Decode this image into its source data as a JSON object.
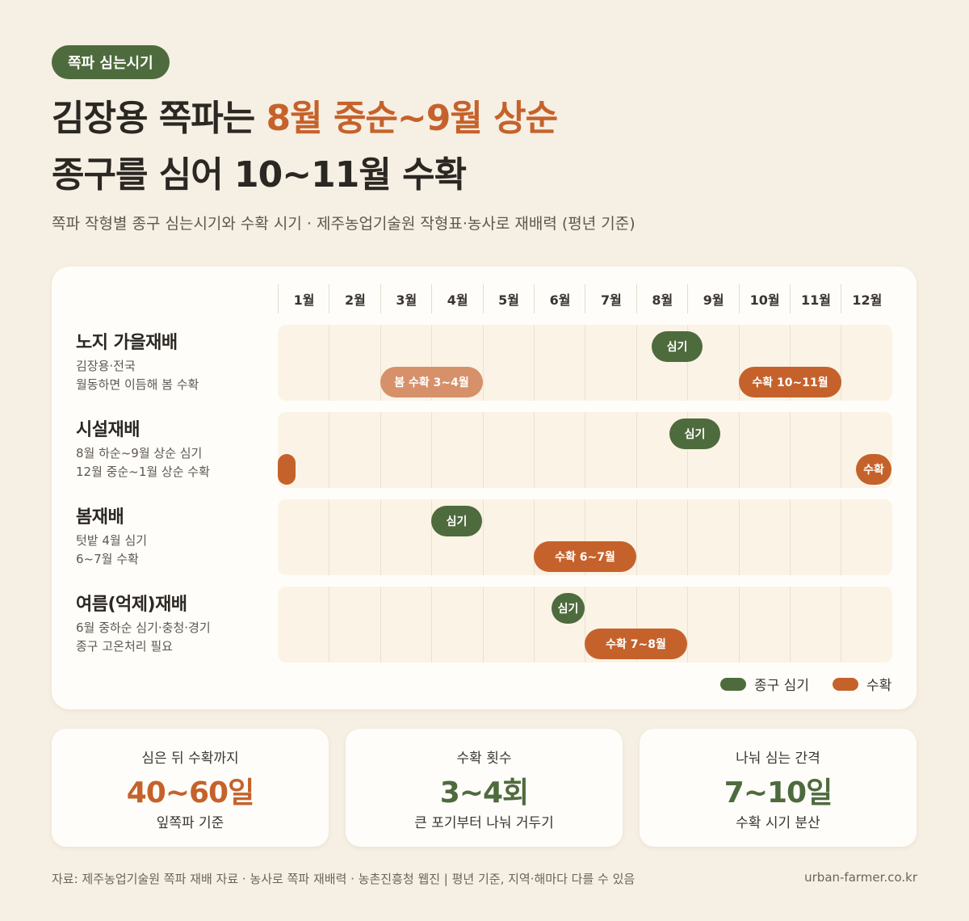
{
  "tag": "쪽파 심는시기",
  "title": {
    "line1_prefix": "김장용 쪽파는 ",
    "line1_highlight": "8월 중순~9월 상순",
    "line2": "종구를 심어 10~11월 수확"
  },
  "subtitle": "쪽파 작형별 종구 심는시기와 수확 시기 · 제주농업기술원 작형표·농사로 재배력 (평년 기준)",
  "colors": {
    "plant": "#4e6b3d",
    "harvest": "#c5622b",
    "harvest_light": "#d6916a",
    "background": "#f6efe3"
  },
  "chart_data": {
    "type": "gantt",
    "x_axis": {
      "unit": "month",
      "range": [
        1,
        13
      ],
      "tick_labels": [
        "1월",
        "2월",
        "3월",
        "4월",
        "5월",
        "6월",
        "7월",
        "8월",
        "9월",
        "10월",
        "11월",
        "12월"
      ]
    },
    "rows": [
      {
        "name": "노지 가을재배",
        "desc": "김장용·전국\n월동하면 이듬해 봄 수확",
        "bars": [
          {
            "kind": "plant",
            "label": "심기",
            "start": 8.3,
            "end": 9.3
          },
          {
            "kind": "harvest-light",
            "label": "봄 수확 3~4월",
            "start": 3.0,
            "end": 5.0
          },
          {
            "kind": "harvest",
            "label": "수확 10~11월",
            "start": 10.0,
            "end": 12.0
          }
        ]
      },
      {
        "name": "시설재배",
        "desc": "8월 하순~9월 상순 심기\n12월 중순~1월 상순 수확",
        "bars": [
          {
            "kind": "plant",
            "label": "심기",
            "start": 8.65,
            "end": 9.65
          },
          {
            "kind": "harvest",
            "label": "",
            "start": 1.0,
            "end": 1.35
          },
          {
            "kind": "harvest",
            "label": "수확",
            "start": 12.3,
            "end": 13.0
          }
        ]
      },
      {
        "name": "봄재배",
        "desc": "텃밭 4월 심기\n6~7월 수확",
        "bars": [
          {
            "kind": "plant",
            "label": "심기",
            "start": 4.0,
            "end": 5.0
          },
          {
            "kind": "harvest",
            "label": "수확 6~7월",
            "start": 6.0,
            "end": 8.0
          }
        ]
      },
      {
        "name": "여름(억제)재배",
        "desc": "6월 중하순 심기·충청·경기\n종구 고온처리 필요",
        "bars": [
          {
            "kind": "plant",
            "label": "심기",
            "start": 6.35,
            "end": 7.0
          },
          {
            "kind": "harvest",
            "label": "수확 7~8월",
            "start": 7.0,
            "end": 9.0
          }
        ]
      }
    ],
    "legend": [
      {
        "kind": "plant",
        "label": "종구 심기"
      },
      {
        "kind": "harvest",
        "label": "수확"
      }
    ],
    "legend_position": "bottom-right"
  },
  "stats": [
    {
      "label": "심은 뒤 수확까지",
      "value": "40~60일",
      "note": "잎쪽파 기준",
      "color": "#c5622b"
    },
    {
      "label": "수확 횟수",
      "value": "3~4회",
      "note": "큰 포기부터 나눠 거두기",
      "color": "#4e6b3d"
    },
    {
      "label": "나눠 심는 간격",
      "value": "7~10일",
      "note": "수확 시기 분산",
      "color": "#4e6b3d"
    }
  ],
  "footer": {
    "source": "자료: 제주농업기술원 쪽파 재배 자료 · 농사로 쪽파 재배력 · 농촌진흥청 웹진 | 평년 기준, 지역·해마다 다를 수 있음",
    "site": "urban-farmer.co.kr"
  }
}
